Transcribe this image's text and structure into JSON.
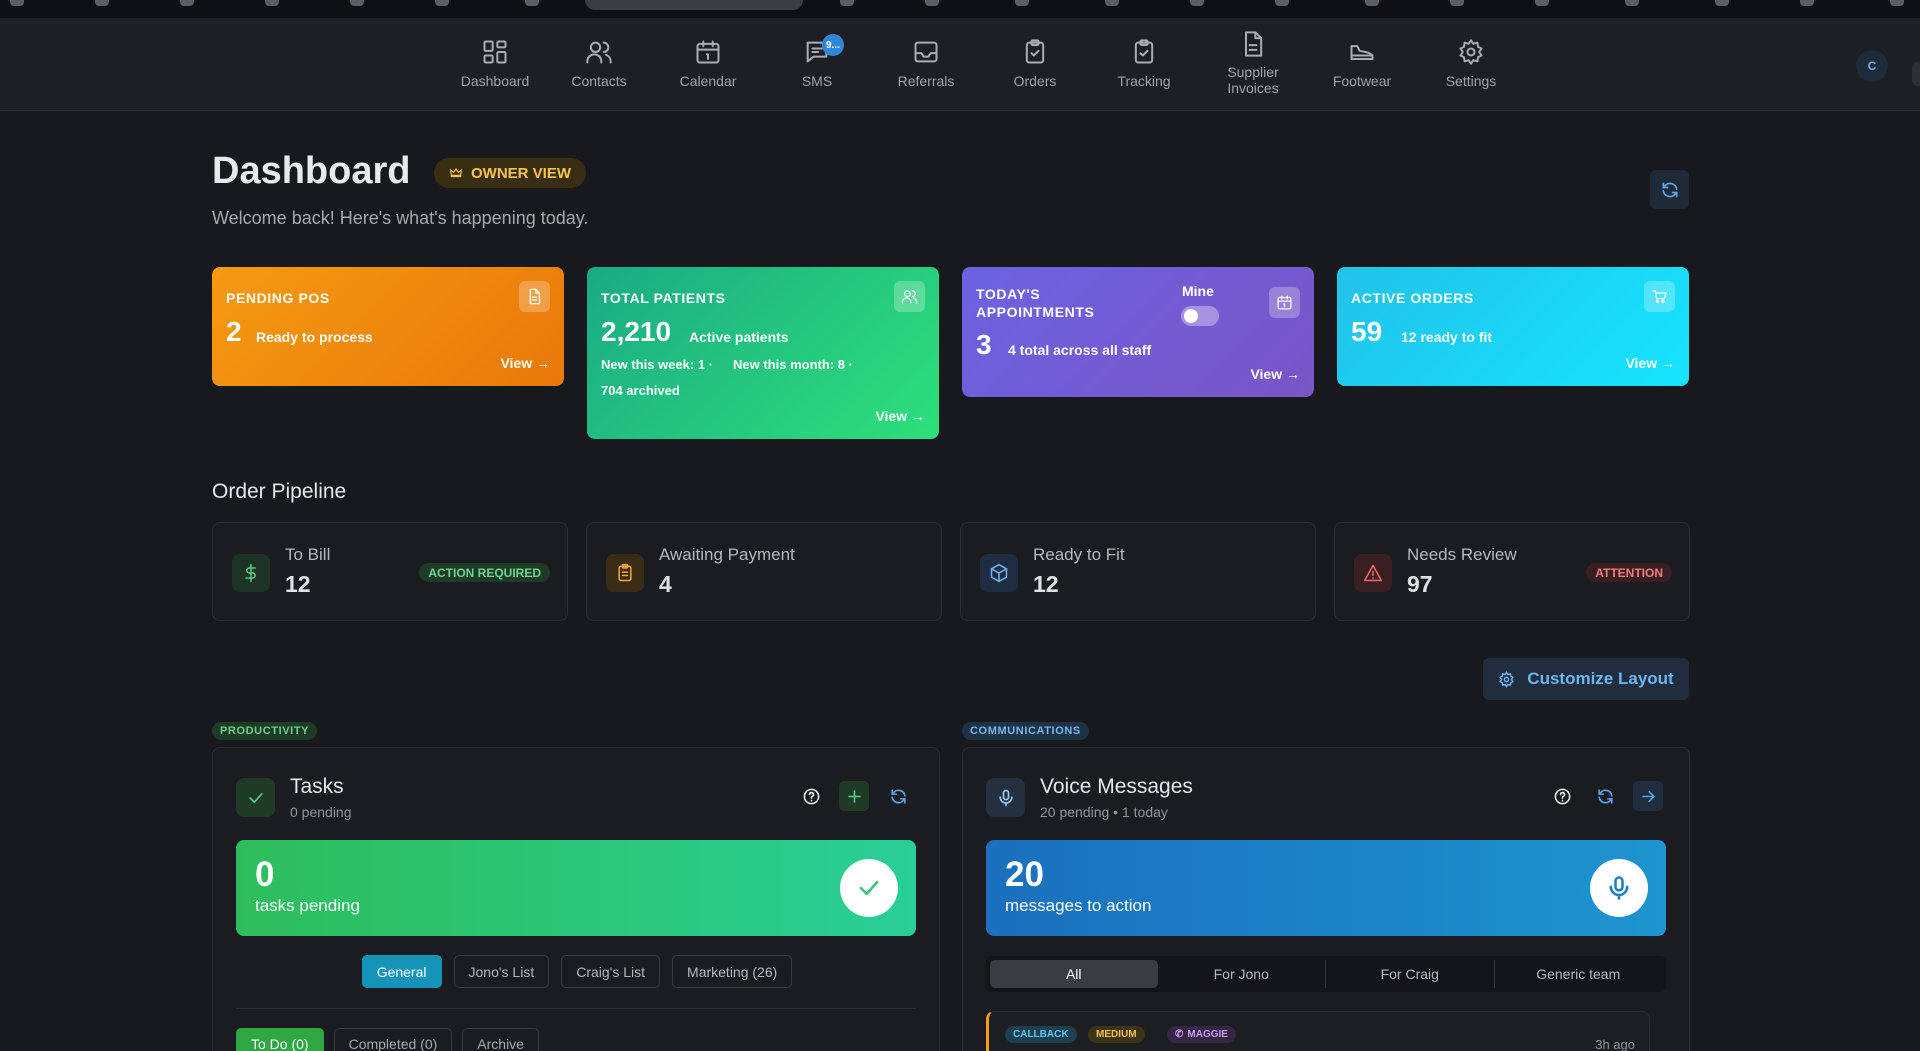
{
  "nav": {
    "items": [
      {
        "label": "Dashboard",
        "icon": "dashboard-icon"
      },
      {
        "label": "Contacts",
        "icon": "contacts-icon"
      },
      {
        "label": "Calendar",
        "icon": "calendar-icon"
      },
      {
        "label": "SMS",
        "icon": "sms-icon"
      },
      {
        "label": "Referrals",
        "icon": "inbox-icon"
      },
      {
        "label": "Orders",
        "icon": "clipboard-check-icon"
      },
      {
        "label": "Tracking",
        "icon": "clipboard-check-icon"
      },
      {
        "label": "Supplier\nInvoices",
        "icon": "document-icon"
      },
      {
        "label": "Footwear",
        "icon": "shoe-icon"
      },
      {
        "label": "Settings",
        "icon": "gear-icon"
      }
    ],
    "sms_badge": "9...",
    "avatar_initial": "C"
  },
  "header": {
    "title": "Dashboard",
    "badge": "OWNER VIEW",
    "welcome": "Welcome back! Here's what's happening today."
  },
  "stats": {
    "pending_pos": {
      "title": "PENDING POS",
      "value": "2",
      "sub": "Ready to process",
      "view": "View →"
    },
    "total_patients": {
      "title": "TOTAL PATIENTS",
      "value": "2,210",
      "sub": "Active patients",
      "week": "New this week: 1 ·",
      "month": "New this month: 8 ·",
      "archived": "704 archived",
      "view": "View →"
    },
    "appointments": {
      "title_line1": "TODAY'S",
      "title_line2": "APPOINTMENTS",
      "value": "3",
      "sub": "4 total across all staff",
      "mine": "Mine",
      "view": "View →"
    },
    "active_orders": {
      "title": "ACTIVE ORDERS",
      "value": "59",
      "sub": "12 ready to fit",
      "view": "View →"
    }
  },
  "pipeline": {
    "title": "Order Pipeline",
    "items": [
      {
        "label": "To Bill",
        "value": "12",
        "badge": "ACTION REQUIRED"
      },
      {
        "label": "Awaiting Payment",
        "value": "4",
        "badge": ""
      },
      {
        "label": "Ready to Fit",
        "value": "12",
        "badge": ""
      },
      {
        "label": "Needs Review",
        "value": "97",
        "badge": "ATTENTION"
      }
    ]
  },
  "customize_label": "Customize Layout",
  "tags": {
    "productivity": "PRODUCTIVITY",
    "communications": "COMMUNICATIONS"
  },
  "tasks": {
    "title": "Tasks",
    "sub": "0 pending",
    "hero_num": "0",
    "hero_cap": "tasks pending",
    "lists": [
      "General",
      "Jono's List",
      "Craig's List",
      "Marketing (26)"
    ],
    "status_tabs": [
      "To Do (0)",
      "Completed (0)",
      "Archive"
    ]
  },
  "voice": {
    "title": "Voice Messages",
    "sub": "20 pending • 1 today",
    "hero_num": "20",
    "hero_cap": "messages to action",
    "filters": [
      "All",
      "For Jono",
      "For Craig",
      "Generic team"
    ],
    "message": {
      "badges": [
        "CALLBACK",
        "MEDIUM",
        "MAGGIE"
      ],
      "time": "3h ago"
    }
  },
  "colors": {
    "accent": "#2f87d8",
    "orange": "#f59a12",
    "green": "#2ee07a",
    "purple": "#6b63e2",
    "cyan": "#15e5ff"
  }
}
